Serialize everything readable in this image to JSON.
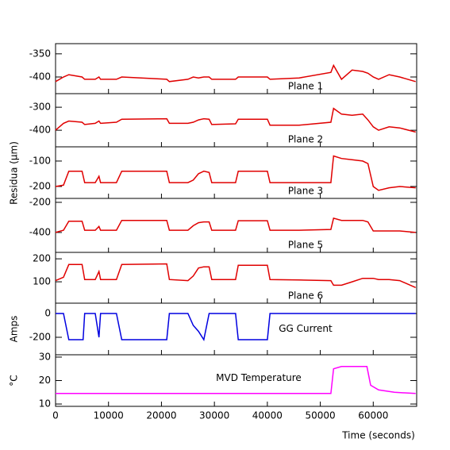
{
  "x_axis": {
    "label": "Time (seconds)",
    "lim": [
      0,
      68200
    ],
    "ticks": [
      0,
      10000,
      20000,
      30000,
      40000,
      50000,
      60000
    ]
  },
  "y_label": "Residua (μm)",
  "chart_data": [
    {
      "type": "line",
      "label": "Plane 1",
      "ylim": [
        -436,
        -328
      ],
      "yticks": [
        -350,
        -400
      ],
      "x": [
        0,
        1500,
        2500,
        5000,
        5500,
        7500,
        8200,
        8500,
        11500,
        12500,
        21000,
        21500,
        25000,
        26000,
        27000,
        28000,
        29000,
        29500,
        34000,
        34500,
        40000,
        40500,
        46000,
        52000,
        52500,
        54000,
        56000,
        58000,
        59000,
        60000,
        61000,
        63000,
        65000,
        68000
      ],
      "series": [
        {
          "color": "#e00000",
          "values": [
            -410,
            -400,
            -395,
            -400,
            -405,
            -405,
            -400,
            -405,
            -405,
            -400,
            -405,
            -410,
            -405,
            -400,
            -402,
            -400,
            -400,
            -405,
            -405,
            -400,
            -400,
            -405,
            -402,
            -390,
            -375,
            -405,
            -385,
            -388,
            -392,
            -400,
            -405,
            -395,
            -400,
            -410
          ]
        }
      ]
    },
    {
      "type": "line",
      "label": "Plane 2",
      "ylim": [
        -472,
        -241
      ],
      "yticks": [
        -300,
        -400
      ],
      "x": [
        0,
        1500,
        2500,
        5000,
        5500,
        7500,
        8200,
        8500,
        11500,
        12500,
        21000,
        21500,
        25000,
        26000,
        27000,
        28000,
        29000,
        29500,
        34000,
        34500,
        40000,
        40500,
        46000,
        52000,
        52500,
        54000,
        56000,
        58000,
        59000,
        60000,
        61000,
        63000,
        65000,
        68000
      ],
      "series": [
        {
          "color": "#e00000",
          "values": [
            -400,
            -370,
            -360,
            -365,
            -375,
            -370,
            -360,
            -370,
            -365,
            -352,
            -350,
            -370,
            -370,
            -365,
            -355,
            -350,
            -352,
            -375,
            -372,
            -352,
            -352,
            -378,
            -378,
            -365,
            -305,
            -330,
            -335,
            -330,
            -355,
            -385,
            -400,
            -385,
            -390,
            -408
          ]
        }
      ]
    },
    {
      "type": "line",
      "label": "Plane 3",
      "ylim": [
        -247,
        -44
      ],
      "yticks": [
        -100,
        -200
      ],
      "x": [
        0,
        1500,
        2500,
        5000,
        5500,
        7500,
        8200,
        8500,
        11500,
        12500,
        21000,
        21500,
        25000,
        26000,
        27000,
        28000,
        29000,
        29500,
        34000,
        34500,
        40000,
        40500,
        46000,
        52000,
        52500,
        54000,
        56000,
        58000,
        59000,
        60000,
        61000,
        63000,
        65000,
        68000
      ],
      "series": [
        {
          "color": "#e00000",
          "values": [
            -200,
            -195,
            -140,
            -140,
            -185,
            -185,
            -160,
            -185,
            -185,
            -140,
            -140,
            -185,
            -185,
            -175,
            -150,
            -140,
            -145,
            -185,
            -185,
            -140,
            -140,
            -185,
            -185,
            -185,
            -80,
            -90,
            -95,
            -100,
            -110,
            -200,
            -215,
            -205,
            -200,
            -205
          ]
        }
      ]
    },
    {
      "type": "line",
      "label": "Plane 5",
      "ylim": [
        -532,
        -174
      ],
      "yticks": [
        -200,
        -400
      ],
      "x": [
        0,
        1500,
        2500,
        5000,
        5500,
        7500,
        8200,
        8500,
        11500,
        12500,
        21000,
        21500,
        25000,
        26000,
        27000,
        28000,
        29000,
        29500,
        34000,
        34500,
        40000,
        40500,
        46000,
        52000,
        52500,
        54000,
        56000,
        58000,
        59000,
        60000,
        61000,
        63000,
        65000,
        68000
      ],
      "series": [
        {
          "color": "#e00000",
          "values": [
            -400,
            -385,
            -325,
            -325,
            -385,
            -385,
            -360,
            -385,
            -385,
            -320,
            -320,
            -385,
            -385,
            -355,
            -335,
            -330,
            -330,
            -385,
            -385,
            -322,
            -322,
            -385,
            -385,
            -380,
            -305,
            -320,
            -320,
            -320,
            -330,
            -390,
            -390,
            -390,
            -390,
            -400
          ]
        }
      ]
    },
    {
      "type": "line",
      "label": "Plane 6",
      "ylim": [
        7,
        228
      ],
      "yticks": [
        100,
        200
      ],
      "x": [
        0,
        1500,
        2500,
        5000,
        5500,
        7500,
        8200,
        8500,
        11500,
        12500,
        21000,
        21500,
        25000,
        26000,
        27000,
        28000,
        29000,
        29500,
        34000,
        34500,
        40000,
        40500,
        46000,
        52000,
        52500,
        54000,
        56000,
        58000,
        59000,
        60000,
        61000,
        63000,
        65000,
        68000
      ],
      "series": [
        {
          "color": "#e00000",
          "values": [
            105,
            120,
            175,
            175,
            110,
            110,
            145,
            110,
            110,
            175,
            178,
            110,
            105,
            125,
            160,
            165,
            165,
            110,
            110,
            172,
            172,
            110,
            108,
            105,
            85,
            85,
            100,
            115,
            115,
            115,
            110,
            110,
            105,
            75
          ]
        }
      ]
    },
    {
      "type": "line",
      "label": "GG Current",
      "ylabel": "Amps",
      "ylim": [
        -347,
        87
      ],
      "yticks": [
        0,
        -200
      ],
      "x": [
        0,
        1500,
        2500,
        5200,
        5500,
        7500,
        8200,
        8500,
        11500,
        12500,
        21000,
        21500,
        25000,
        26000,
        27000,
        28000,
        29000,
        34000,
        34500,
        40000,
        40500,
        68000
      ],
      "series": [
        {
          "color": "#0000e0",
          "values": [
            0,
            0,
            -220,
            -220,
            0,
            0,
            -200,
            0,
            0,
            -220,
            -220,
            0,
            0,
            -100,
            -150,
            -220,
            0,
            0,
            -220,
            -220,
            0,
            0
          ]
        }
      ]
    },
    {
      "type": "line",
      "label": "MVD Temperature",
      "ylabel": "°C",
      "ylim": [
        9,
        31
      ],
      "yticks": [
        10,
        20,
        30
      ],
      "x": [
        0,
        52000,
        52500,
        54000,
        58800,
        59500,
        61000,
        64000,
        68000
      ],
      "series": [
        {
          "color": "#ff00ff",
          "values": [
            14.5,
            14.5,
            25,
            26,
            26,
            18,
            16,
            15,
            14.5
          ]
        }
      ]
    }
  ]
}
